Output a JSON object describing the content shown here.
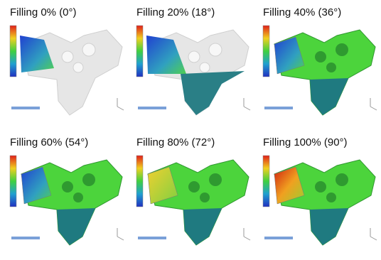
{
  "panels": [
    {
      "label": "Filling 0% (0°)"
    },
    {
      "label": "Filling 20% (18°)"
    },
    {
      "label": "Filling 40% (36°)"
    },
    {
      "label": "Filling 60% (54°)"
    },
    {
      "label": "Filling 80% (72°)"
    },
    {
      "label": "Filling 100% (90°)"
    }
  ]
}
